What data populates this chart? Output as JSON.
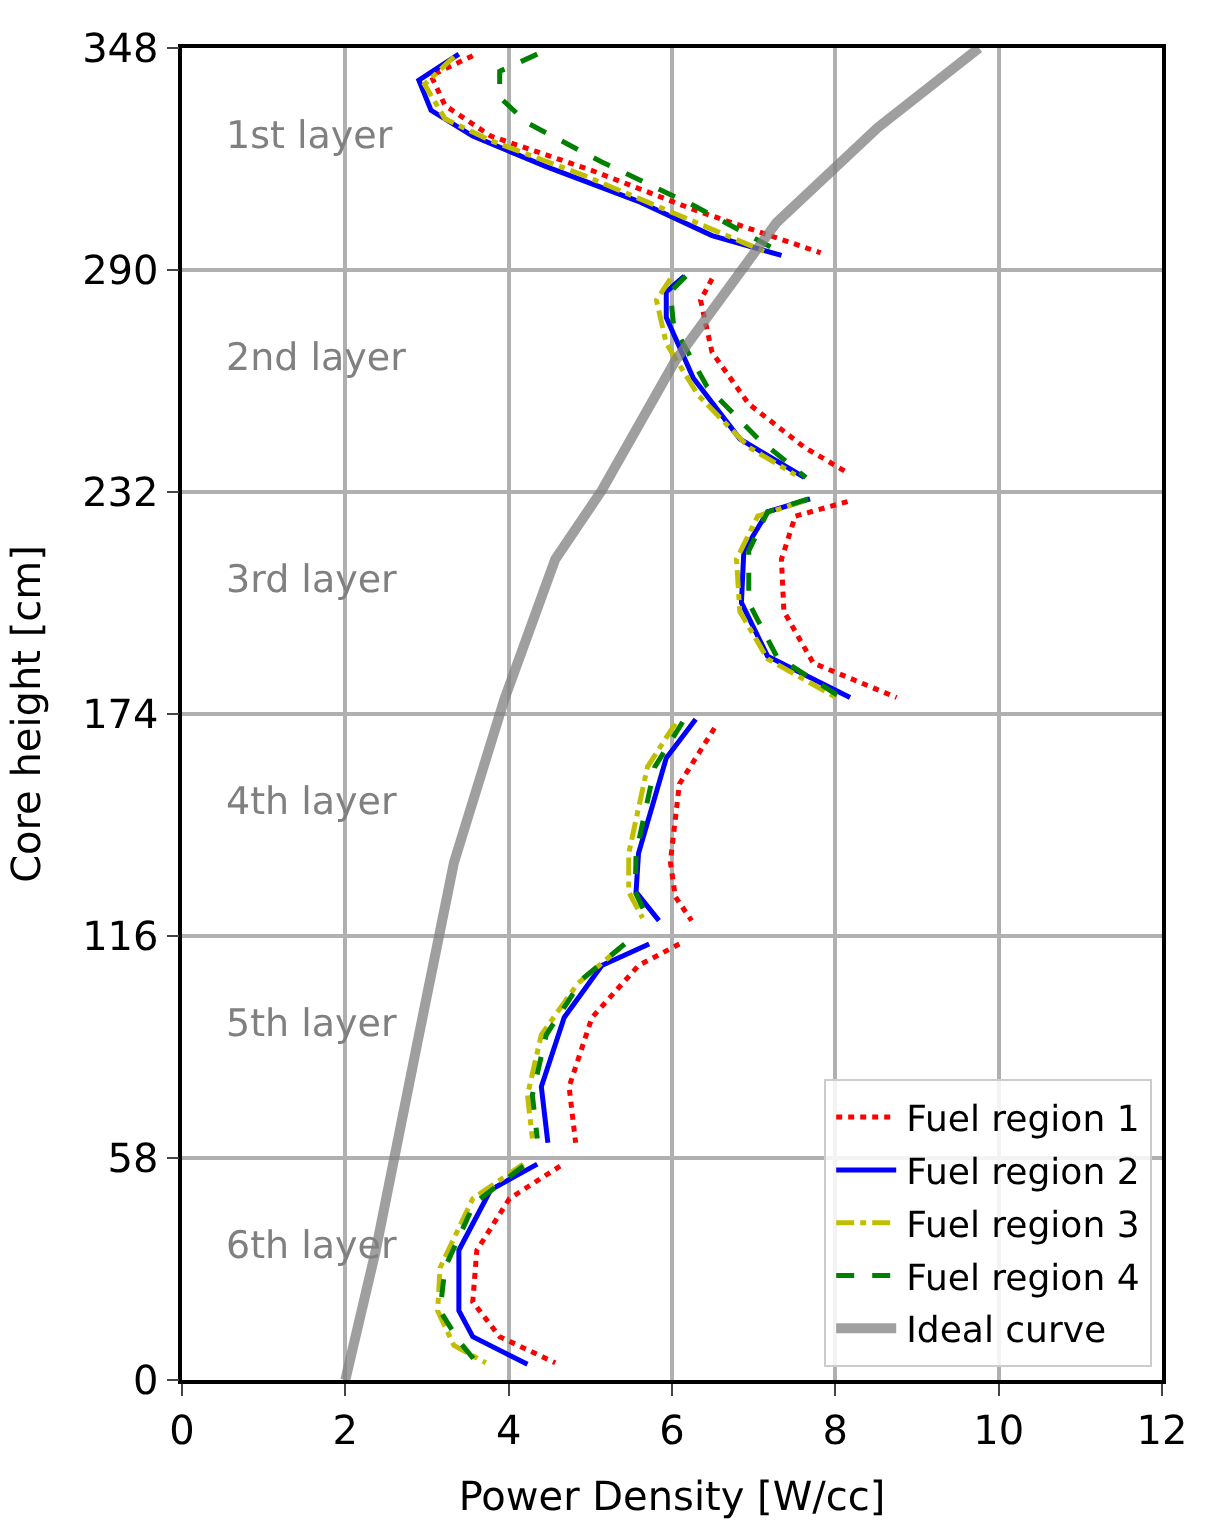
{
  "chart_data": {
    "type": "line",
    "xlabel": "Power Density [W/cc]",
    "ylabel": "Core height [cm]",
    "xlim": [
      0,
      12
    ],
    "xticks": [
      0,
      2,
      4,
      6,
      8,
      10,
      12
    ],
    "ylim": [
      0,
      348
    ],
    "yticks": [
      0,
      58,
      116,
      174,
      232,
      290,
      348
    ],
    "grid": true,
    "legend": "bottom right",
    "marker": "none",
    "series": [
      {
        "name": "Fuel region 1",
        "color": "#ff0000",
        "line_style": "dotted",
        "x": [
          3.56,
          3.05,
          3.22,
          3.78,
          5.02,
          6.26,
          7.82,
          null,
          6.49,
          6.35,
          6.49,
          6.94,
          7.62,
          8.16,
          null,
          8.15,
          7.51,
          7.34,
          7.37,
          7.73,
          8.75,
          null,
          6.52,
          6.09,
          5.98,
          6.04,
          6.24,
          null,
          6.09,
          5.59,
          5.02,
          4.74,
          4.82,
          null,
          4.63,
          4.01,
          3.61,
          3.56,
          3.89,
          4.57
        ],
        "values": [
          346,
          340.8,
          333,
          325,
          316,
          305.8,
          294.5,
          null,
          287.7,
          282.1,
          268.5,
          255,
          243.7,
          236.9,
          null,
          229.5,
          225.7,
          214.4,
          200.8,
          187.3,
          178.3,
          null,
          170.3,
          155.7,
          135.4,
          126.3,
          120,
          null,
          113.9,
          108.3,
          94.7,
          76.6,
          62,
          null,
          55.9,
          47.4,
          33.9,
          20.4,
          11.3,
          4.5
        ]
      },
      {
        "name": "Fuel region 2",
        "color": "#0000ff",
        "line_style": "solid",
        "x": [
          3.39,
          2.9,
          3.05,
          3.56,
          4.46,
          5.58,
          6.49,
          7.34,
          null,
          6.15,
          5.93,
          5.93,
          6.26,
          6.83,
          7.62,
          null,
          7.69,
          7.17,
          6.88,
          6.85,
          7.17,
          8.18,
          null,
          6.29,
          5.93,
          5.59,
          5.56,
          5.84,
          null,
          5.72,
          5.14,
          4.68,
          4.4,
          4.48,
          null,
          4.35,
          3.78,
          3.39,
          3.39,
          3.56,
          4.23
        ],
        "values": [
          346.4,
          339.6,
          331.7,
          325,
          317,
          308,
          299,
          293.8,
          null,
          288.4,
          284.3,
          277.6,
          261.8,
          245.9,
          235.8,
          null,
          230.2,
          226.8,
          216.6,
          203.1,
          189.1,
          178.3,
          null,
          172.6,
          162.5,
          137.6,
          127.5,
          120,
          null,
          113.9,
          108.3,
          94.7,
          76.6,
          62,
          null,
          56.4,
          49.7,
          33.9,
          18.1,
          11.3,
          4.1
        ]
      },
      {
        "name": "Fuel region 3",
        "color": "#bfbf00",
        "line_style": "dashdot",
        "x": [
          3.33,
          2.97,
          3.22,
          3.78,
          4.91,
          6.04,
          7.17,
          null,
          5.98,
          5.81,
          5.93,
          6.32,
          6.94,
          7.51,
          null,
          7.62,
          7.05,
          6.79,
          6.83,
          7.17,
          8.01,
          null,
          6.04,
          5.7,
          5.47,
          5.47,
          5.64,
          null,
          5.36,
          4.85,
          4.4,
          4.23,
          4.29,
          null,
          4.18,
          3.56,
          3.16,
          3.13,
          3.33,
          3.72
        ],
        "values": [
          345.7,
          338.5,
          329.5,
          323.8,
          314.8,
          304.7,
          294.5,
          null,
          287.7,
          282.1,
          270.8,
          257.3,
          243.7,
          236.5,
          null,
          229.7,
          225.7,
          214.4,
          200.8,
          188.4,
          178.3,
          null,
          171.5,
          160.2,
          137.6,
          127.5,
          120.7,
          null,
          112.8,
          103.7,
          90.2,
          74.4,
          63.1,
          null,
          56.4,
          47.4,
          29.3,
          18.1,
          9,
          4.5
        ]
      },
      {
        "name": "Fuel region 4",
        "color": "#008000",
        "line_style": "dashed",
        "x": [
          4.35,
          3.89,
          3.89,
          4.23,
          5.14,
          6.26,
          7.34,
          null,
          6.17,
          5.98,
          6.02,
          6.43,
          7.05,
          7.64,
          null,
          7.67,
          7.17,
          6.94,
          6.94,
          7.28,
          8.07,
          null,
          6.13,
          5.79,
          5.56,
          5.55,
          5.7,
          null,
          5.42,
          4.91,
          4.46,
          4.29,
          4.35,
          null,
          4.18,
          3.58,
          3.22,
          3.16,
          3.39,
          3.61
        ],
        "values": [
          346.4,
          341.9,
          335.1,
          328.4,
          318.2,
          306.9,
          294.5,
          null,
          288.4,
          284.3,
          275.3,
          259.5,
          246,
          235.8,
          null,
          230.2,
          226.8,
          216.6,
          203.1,
          189.1,
          178.3,
          null,
          171.9,
          160.2,
          137.6,
          127.5,
          120.7,
          null,
          113.9,
          104.9,
          90.2,
          74.4,
          63.1,
          null,
          55.9,
          46.2,
          29.3,
          18.1,
          10.2,
          4.5
        ]
      },
      {
        "name": "Ideal curve",
        "color": "#808080",
        "line_style": "solid",
        "x": [
          2.0,
          2.37,
          2.9,
          3.33,
          3.95,
          4.57,
          5.14,
          6.04,
          7.28,
          8.52,
          9.76
        ],
        "values": [
          0,
          33.6,
          90,
          135.2,
          178,
          214.4,
          232.4,
          266.3,
          302.4,
          327.2,
          348
        ]
      }
    ],
    "annotations": [
      "1st layer",
      "2nd layer",
      "3rd layer",
      "4th layer",
      "5th layer",
      "6th layer"
    ]
  }
}
